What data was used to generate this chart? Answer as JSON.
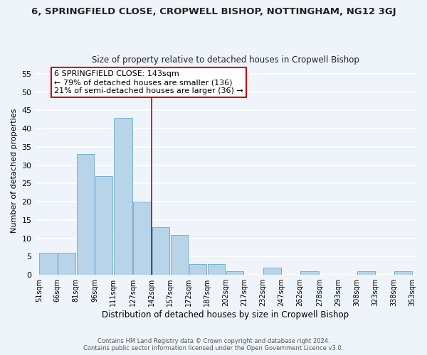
{
  "title": "6, SPRINGFIELD CLOSE, CROPWELL BISHOP, NOTTINGHAM, NG12 3GJ",
  "subtitle": "Size of property relative to detached houses in Cropwell Bishop",
  "xlabel": "Distribution of detached houses by size in Cropwell Bishop",
  "ylabel": "Number of detached properties",
  "footer_line1": "Contains HM Land Registry data © Crown copyright and database right 2024.",
  "footer_line2": "Contains public sector information licensed under the Open Government Licence v3.0.",
  "bar_edges": [
    51,
    66,
    81,
    96,
    111,
    127,
    142,
    157,
    172,
    187,
    202,
    217,
    232,
    247,
    262,
    278,
    293,
    308,
    323,
    338,
    353
  ],
  "bar_heights": [
    6,
    6,
    33,
    27,
    43,
    20,
    13,
    11,
    3,
    3,
    1,
    0,
    2,
    0,
    1,
    0,
    0,
    1,
    0,
    1
  ],
  "bar_color": "#b8d4e8",
  "bar_edgecolor": "#7bafd4",
  "vline_x": 142,
  "vline_color": "#cc0000",
  "annotation_title": "6 SPRINGFIELD CLOSE: 143sqm",
  "annotation_line1": "← 79% of detached houses are smaller (136)",
  "annotation_line2": "21% of semi-detached houses are larger (36) →",
  "annotation_box_color": "#ffffff",
  "annotation_box_edgecolor": "#cc0000",
  "ylim": [
    0,
    57
  ],
  "yticks": [
    0,
    5,
    10,
    15,
    20,
    25,
    30,
    35,
    40,
    45,
    50,
    55
  ],
  "tick_labels": [
    "51sqm",
    "66sqm",
    "81sqm",
    "96sqm",
    "111sqm",
    "127sqm",
    "142sqm",
    "157sqm",
    "172sqm",
    "187sqm",
    "202sqm",
    "217sqm",
    "232sqm",
    "247sqm",
    "262sqm",
    "278sqm",
    "293sqm",
    "308sqm",
    "323sqm",
    "338sqm",
    "353sqm"
  ],
  "background_color": "#eef4fa",
  "grid_color": "#ffffff",
  "title_fontsize": 9.5,
  "subtitle_fontsize": 8.5
}
